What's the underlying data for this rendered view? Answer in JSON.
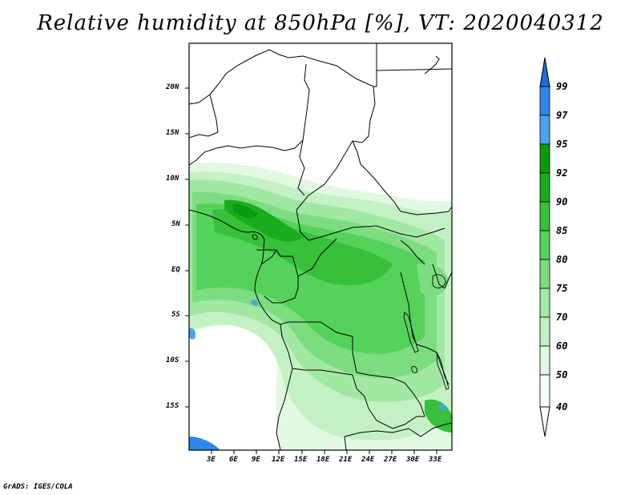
{
  "title": "Relative humidity at 850hPa [%], VT: 2020040312",
  "footer": "GrADS: IGES/COLA",
  "lat_labels": [
    "20N",
    "15N",
    "10N",
    "5N",
    "EQ",
    "5S",
    "10S",
    "15S"
  ],
  "lon_labels": [
    "3E",
    "6E",
    "9E",
    "12E",
    "15E",
    "18E",
    "21E",
    "24E",
    "27E",
    "30E",
    "33E"
  ],
  "colorbar": {
    "levels": [
      "99",
      "97",
      "95",
      "92",
      "90",
      "85",
      "80",
      "75",
      "70",
      "60",
      "50",
      "40"
    ],
    "colors": [
      "#1a6ed8",
      "#2f86e8",
      "#4aa3f0",
      "#079b0e",
      "#19ad1d",
      "#37c03a",
      "#54d25a",
      "#7cdd80",
      "#a1e8a3",
      "#c3f1c4",
      "#e1f9e1",
      "#f5fff5"
    ]
  },
  "field": {
    "variable": "Relative humidity",
    "level": "850hPa",
    "unit": "%",
    "valid_time": "2020040312",
    "extent": {
      "lon_min": 0,
      "lon_max": 35,
      "lat_min": -19,
      "lat_max": 25
    }
  }
}
